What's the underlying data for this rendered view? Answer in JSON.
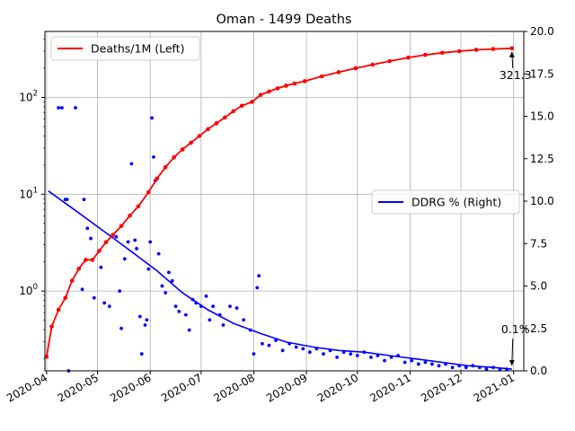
{
  "chart_data": {
    "type": "line",
    "title": "Oman - 1499 Deaths",
    "x_ticks": [
      "2020-04",
      "2020-05",
      "2020-06",
      "2020-07",
      "2020-08",
      "2020-09",
      "2020-10",
      "2020-11",
      "2020-12",
      "2021-01"
    ],
    "x_range": [
      "2020-03-31",
      "2021-01-07"
    ],
    "left_axis": {
      "scale": "log",
      "range": [
        0.15,
        480
      ],
      "ticks": [
        "10^0",
        "10^1",
        "10^2"
      ]
    },
    "right_axis": {
      "scale": "linear",
      "range": [
        0,
        20
      ],
      "ticks": [
        "0.0",
        "2.5",
        "5.0",
        "7.5",
        "10.0",
        "12.5",
        "15.0",
        "17.5",
        "20.0"
      ]
    },
    "grid": true,
    "series": [
      {
        "name": "Deaths/1M (Left)",
        "axis": "left",
        "color": "#ff0000",
        "points": [
          [
            "2020-04-01",
            0.21
          ],
          [
            "2020-04-04",
            0.43
          ],
          [
            "2020-04-08",
            0.64
          ],
          [
            "2020-04-12",
            0.85
          ],
          [
            "2020-04-16",
            1.28
          ],
          [
            "2020-04-20",
            1.7
          ],
          [
            "2020-04-24",
            2.1
          ],
          [
            "2020-04-28",
            2.1
          ],
          [
            "2020-05-02",
            2.6
          ],
          [
            "2020-05-06",
            3.2
          ],
          [
            "2020-05-10",
            3.8
          ],
          [
            "2020-05-15",
            4.7
          ],
          [
            "2020-05-20",
            6.0
          ],
          [
            "2020-05-25",
            7.5
          ],
          [
            "2020-05-31",
            10.5
          ],
          [
            "2020-06-05",
            14.5
          ],
          [
            "2020-06-10",
            19
          ],
          [
            "2020-06-15",
            24
          ],
          [
            "2020-06-20",
            29
          ],
          [
            "2020-06-25",
            34
          ],
          [
            "2020-06-30",
            40
          ],
          [
            "2020-07-05",
            47
          ],
          [
            "2020-07-10",
            54
          ],
          [
            "2020-07-15",
            62
          ],
          [
            "2020-07-20",
            72
          ],
          [
            "2020-07-25",
            82
          ],
          [
            "2020-07-31",
            90
          ],
          [
            "2020-08-05",
            106
          ],
          [
            "2020-08-10",
            115
          ],
          [
            "2020-08-15",
            124
          ],
          [
            "2020-08-20",
            132
          ],
          [
            "2020-08-25",
            139
          ],
          [
            "2020-08-31",
            147
          ],
          [
            "2020-09-10",
            165
          ],
          [
            "2020-09-20",
            182
          ],
          [
            "2020-09-30",
            200
          ],
          [
            "2020-10-10",
            218
          ],
          [
            "2020-10-20",
            237
          ],
          [
            "2020-10-31",
            258
          ],
          [
            "2020-11-10",
            275
          ],
          [
            "2020-11-20",
            289
          ],
          [
            "2020-11-30",
            300
          ],
          [
            "2020-12-10",
            310
          ],
          [
            "2020-12-20",
            316
          ],
          [
            "2020-12-31",
            321.3
          ]
        ]
      },
      {
        "name": "DDRG % (Right)",
        "axis": "right",
        "color": "#0000ff",
        "curve": [
          [
            "2020-04-02",
            10.6
          ],
          [
            "2020-04-20",
            9.3
          ],
          [
            "2020-05-05",
            8.2
          ],
          [
            "2020-05-20",
            7.1
          ],
          [
            "2020-06-05",
            5.9
          ],
          [
            "2020-06-20",
            4.6
          ],
          [
            "2020-07-05",
            3.6
          ],
          [
            "2020-07-20",
            2.8
          ],
          [
            "2020-08-05",
            2.2
          ],
          [
            "2020-08-20",
            1.7
          ],
          [
            "2020-09-05",
            1.4
          ],
          [
            "2020-09-20",
            1.2
          ],
          [
            "2020-10-05",
            1.1
          ],
          [
            "2020-10-20",
            0.9
          ],
          [
            "2020-11-05",
            0.7
          ],
          [
            "2020-11-20",
            0.5
          ],
          [
            "2020-12-05",
            0.3
          ],
          [
            "2020-12-20",
            0.2
          ],
          [
            "2020-12-31",
            0.1
          ]
        ],
        "scatter": [
          [
            "2020-04-08",
            15.5
          ],
          [
            "2020-04-10",
            15.5
          ],
          [
            "2020-04-12",
            10.1
          ],
          [
            "2020-04-13",
            10.1
          ],
          [
            "2020-04-18",
            15.5
          ],
          [
            "2020-04-23",
            10.1
          ],
          [
            "2020-04-25",
            8.4
          ],
          [
            "2020-04-27",
            7.8
          ],
          [
            "2020-04-14",
            0.0
          ],
          [
            "2020-04-22",
            4.8
          ],
          [
            "2020-04-29",
            4.3
          ],
          [
            "2020-05-03",
            6.1
          ],
          [
            "2020-05-05",
            4.0
          ],
          [
            "2020-05-08",
            3.8
          ],
          [
            "2020-05-12",
            7.9
          ],
          [
            "2020-05-14",
            4.7
          ],
          [
            "2020-05-15",
            2.5
          ],
          [
            "2020-05-17",
            6.6
          ],
          [
            "2020-05-19",
            7.6
          ],
          [
            "2020-05-21",
            12.2
          ],
          [
            "2020-05-23",
            7.7
          ],
          [
            "2020-05-24",
            7.2
          ],
          [
            "2020-05-26",
            3.2
          ],
          [
            "2020-05-27",
            1.0
          ],
          [
            "2020-05-29",
            2.7
          ],
          [
            "2020-05-30",
            3.0
          ],
          [
            "2020-05-31",
            6.0
          ],
          [
            "2020-06-01",
            7.6
          ],
          [
            "2020-06-02",
            14.9
          ],
          [
            "2020-06-03",
            12.6
          ],
          [
            "2020-06-04",
            11.2
          ],
          [
            "2020-06-06",
            6.9
          ],
          [
            "2020-06-08",
            5.0
          ],
          [
            "2020-06-10",
            4.6
          ],
          [
            "2020-06-12",
            5.8
          ],
          [
            "2020-06-14",
            5.3
          ],
          [
            "2020-06-16",
            3.8
          ],
          [
            "2020-06-18",
            3.5
          ],
          [
            "2020-06-22",
            3.3
          ],
          [
            "2020-06-24",
            2.4
          ],
          [
            "2020-06-26",
            4.2
          ],
          [
            "2020-06-28",
            4.0
          ],
          [
            "2020-07-01",
            3.8
          ],
          [
            "2020-07-04",
            4.4
          ],
          [
            "2020-07-06",
            3.0
          ],
          [
            "2020-07-08",
            3.8
          ],
          [
            "2020-07-12",
            3.3
          ],
          [
            "2020-07-14",
            2.7
          ],
          [
            "2020-07-18",
            3.8
          ],
          [
            "2020-07-22",
            3.7
          ],
          [
            "2020-07-26",
            3.0
          ],
          [
            "2020-07-30",
            2.4
          ],
          [
            "2020-08-01",
            1.0
          ],
          [
            "2020-08-03",
            4.9
          ],
          [
            "2020-08-04",
            5.6
          ],
          [
            "2020-08-06",
            1.6
          ],
          [
            "2020-08-10",
            1.5
          ],
          [
            "2020-08-14",
            1.8
          ],
          [
            "2020-08-18",
            1.2
          ],
          [
            "2020-08-22",
            1.6
          ],
          [
            "2020-08-26",
            1.4
          ],
          [
            "2020-08-30",
            1.3
          ],
          [
            "2020-09-03",
            1.1
          ],
          [
            "2020-09-07",
            1.3
          ],
          [
            "2020-09-11",
            1.0
          ],
          [
            "2020-09-15",
            1.2
          ],
          [
            "2020-09-19",
            0.8
          ],
          [
            "2020-09-23",
            1.1
          ],
          [
            "2020-09-27",
            1.0
          ],
          [
            "2020-10-01",
            0.9
          ],
          [
            "2020-10-05",
            1.1
          ],
          [
            "2020-10-09",
            0.8
          ],
          [
            "2020-10-13",
            0.9
          ],
          [
            "2020-10-17",
            0.6
          ],
          [
            "2020-10-21",
            0.8
          ],
          [
            "2020-10-25",
            0.9
          ],
          [
            "2020-10-29",
            0.5
          ],
          [
            "2020-11-02",
            0.6
          ],
          [
            "2020-11-06",
            0.4
          ],
          [
            "2020-11-10",
            0.5
          ],
          [
            "2020-11-14",
            0.4
          ],
          [
            "2020-11-18",
            0.3
          ],
          [
            "2020-11-22",
            0.4
          ],
          [
            "2020-11-26",
            0.2
          ],
          [
            "2020-11-30",
            0.3
          ],
          [
            "2020-12-04",
            0.2
          ],
          [
            "2020-12-08",
            0.3
          ],
          [
            "2020-12-12",
            0.2
          ],
          [
            "2020-12-16",
            0.1
          ],
          [
            "2020-12-20",
            0.2
          ],
          [
            "2020-12-24",
            0.1
          ],
          [
            "2020-12-28",
            0.1
          ]
        ]
      }
    ],
    "annotations": [
      {
        "text": "321.3",
        "series": "Deaths/1M (Left)",
        "date": "2020-12-31",
        "value": 321.3
      },
      {
        "text": "0.1%",
        "series": "DDRG % (Right)",
        "date": "2020-12-31",
        "value": 0.1
      }
    ],
    "legends": [
      {
        "entries": [
          "Deaths/1M (Left)"
        ],
        "placement": "upper left"
      },
      {
        "entries": [
          "DDRG % (Right)"
        ],
        "placement": "center right"
      }
    ]
  }
}
